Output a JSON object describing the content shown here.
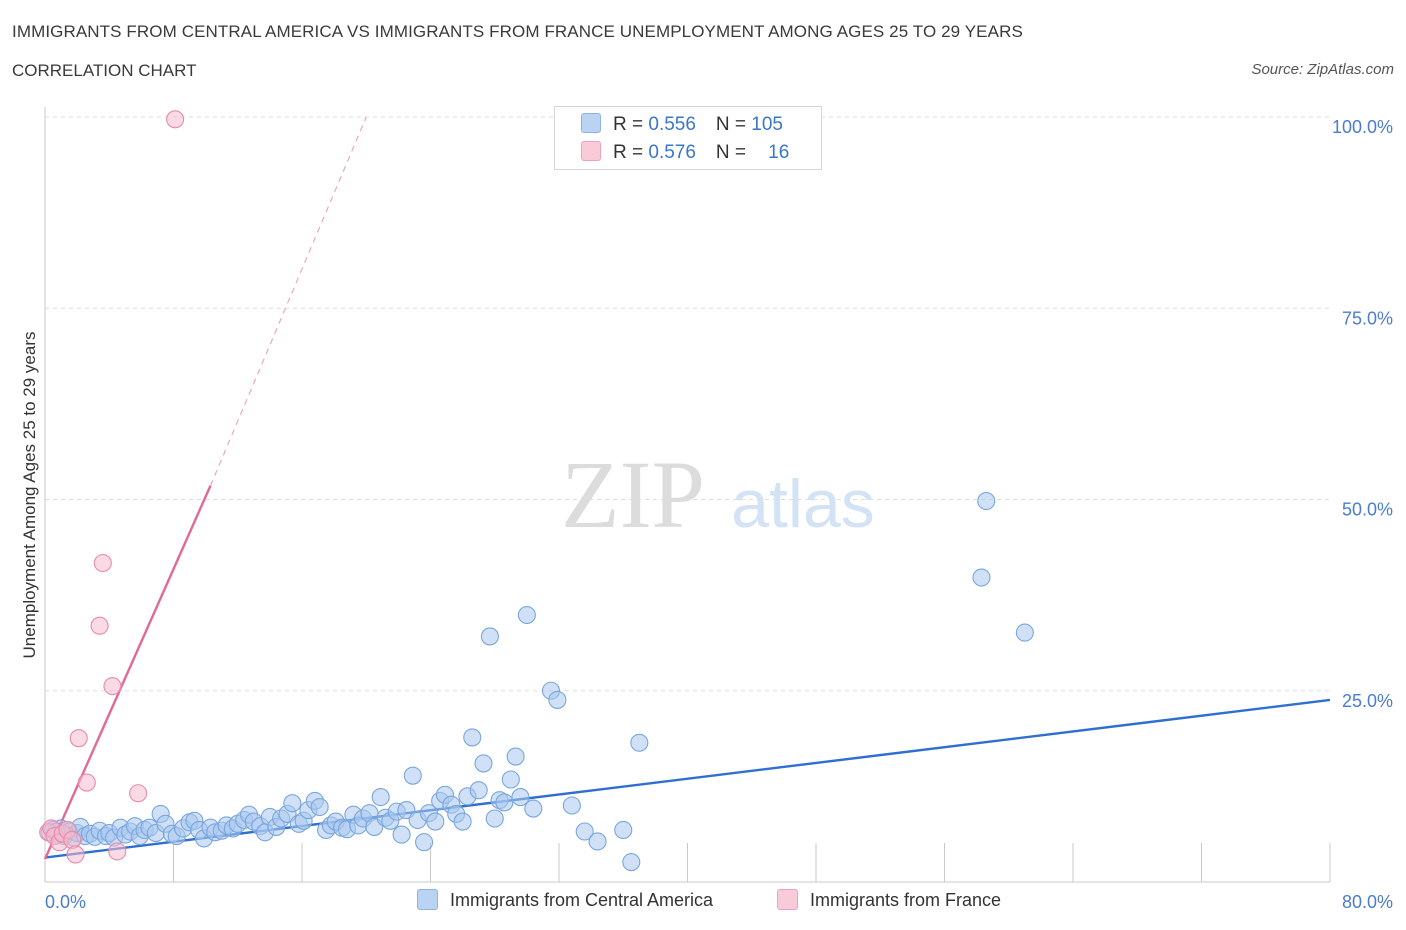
{
  "header": {
    "title": "IMMIGRANTS FROM CENTRAL AMERICA VS IMMIGRANTS FROM FRANCE UNEMPLOYMENT AMONG AGES 25 TO 29 YEARS",
    "subtitle": "CORRELATION CHART",
    "source": "Source: ZipAtlas.com"
  },
  "watermark": {
    "zip": "ZIP",
    "atlas": "atlas"
  },
  "legend": {
    "rows": [
      {
        "r_label": "R = ",
        "r_value": "0.556",
        "n_label": "N = ",
        "n_value": "105",
        "color": "#aac8f0"
      },
      {
        "r_label": "R = ",
        "r_value": "0.576",
        "n_label": "N = ",
        "n_value": "16",
        "color": "#f6bccd"
      }
    ]
  },
  "bottom_legend": [
    {
      "label": "Immigrants from Central America",
      "color": "#aac8f0"
    },
    {
      "label": "Immigrants from France",
      "color": "#f6bccd"
    }
  ],
  "chart_data": {
    "type": "scatter",
    "xlabel": "",
    "ylabel": "Unemployment Among Ages 25 to 29 years",
    "xlim": [
      0,
      80
    ],
    "ylim": [
      0,
      100
    ],
    "x_tick_labels": [
      {
        "value": 0,
        "label": "0.0%"
      },
      {
        "value": 80,
        "label": "80.0%"
      }
    ],
    "y_tick_labels": [
      {
        "value": 25,
        "label": "25.0%"
      },
      {
        "value": 50,
        "label": "50.0%"
      },
      {
        "value": 75,
        "label": "75.0%"
      },
      {
        "value": 100,
        "label": "100.0%"
      }
    ],
    "grid": true,
    "series": [
      {
        "name": "Immigrants from Central America",
        "color": "#aac8f0",
        "edge": "#7aa6dd",
        "line_color": "#2f6fd0",
        "trend": {
          "x": [
            0,
            80
          ],
          "y": [
            3.2,
            23.8
          ]
        },
        "points": [
          [
            0.3,
            6.5
          ],
          [
            0.5,
            6.8
          ],
          [
            0.8,
            6.2
          ],
          [
            1.0,
            7.0
          ],
          [
            1.2,
            6.0
          ],
          [
            1.5,
            6.6
          ],
          [
            1.8,
            5.8
          ],
          [
            2.0,
            6.4
          ],
          [
            2.2,
            7.2
          ],
          [
            2.5,
            6.0
          ],
          [
            2.8,
            6.3
          ],
          [
            3.1,
            5.9
          ],
          [
            3.4,
            6.7
          ],
          [
            3.8,
            6.0
          ],
          [
            4.0,
            6.4
          ],
          [
            4.3,
            5.8
          ],
          [
            4.7,
            7.1
          ],
          [
            5.0,
            6.2
          ],
          [
            5.3,
            6.6
          ],
          [
            5.6,
            7.3
          ],
          [
            5.9,
            6.0
          ],
          [
            6.2,
            6.8
          ],
          [
            6.5,
            7.1
          ],
          [
            6.9,
            6.4
          ],
          [
            7.2,
            8.9
          ],
          [
            7.5,
            7.6
          ],
          [
            7.9,
            6.3
          ],
          [
            8.2,
            6.0
          ],
          [
            8.6,
            7.0
          ],
          [
            9.0,
            7.8
          ],
          [
            9.3,
            8.0
          ],
          [
            9.6,
            6.8
          ],
          [
            9.9,
            5.7
          ],
          [
            10.3,
            7.1
          ],
          [
            10.6,
            6.5
          ],
          [
            11.0,
            6.7
          ],
          [
            11.3,
            7.4
          ],
          [
            11.7,
            7.0
          ],
          [
            12.0,
            7.6
          ],
          [
            12.4,
            8.1
          ],
          [
            12.7,
            8.8
          ],
          [
            13.0,
            7.9
          ],
          [
            13.4,
            7.3
          ],
          [
            13.7,
            6.5
          ],
          [
            14.0,
            8.5
          ],
          [
            14.4,
            7.2
          ],
          [
            14.7,
            8.3
          ],
          [
            15.1,
            8.9
          ],
          [
            15.4,
            10.3
          ],
          [
            15.8,
            7.6
          ],
          [
            16.1,
            8.0
          ],
          [
            16.4,
            9.4
          ],
          [
            16.8,
            10.6
          ],
          [
            17.1,
            9.8
          ],
          [
            17.5,
            6.8
          ],
          [
            17.8,
            7.4
          ],
          [
            18.1,
            7.9
          ],
          [
            18.5,
            7.1
          ],
          [
            18.8,
            6.9
          ],
          [
            19.2,
            8.8
          ],
          [
            19.5,
            7.4
          ],
          [
            19.8,
            8.3
          ],
          [
            20.2,
            9.0
          ],
          [
            20.5,
            7.2
          ],
          [
            20.9,
            11.1
          ],
          [
            21.2,
            8.4
          ],
          [
            21.5,
            8.0
          ],
          [
            21.9,
            9.2
          ],
          [
            22.2,
            6.2
          ],
          [
            22.5,
            9.4
          ],
          [
            22.9,
            13.9
          ],
          [
            23.2,
            8.1
          ],
          [
            23.6,
            5.2
          ],
          [
            23.9,
            9.0
          ],
          [
            24.3,
            7.9
          ],
          [
            24.6,
            10.6
          ],
          [
            24.9,
            11.4
          ],
          [
            25.3,
            10.1
          ],
          [
            25.6,
            8.9
          ],
          [
            26.0,
            7.9
          ],
          [
            26.3,
            11.2
          ],
          [
            26.6,
            18.9
          ],
          [
            27.0,
            12.0
          ],
          [
            27.3,
            15.5
          ],
          [
            27.7,
            32.1
          ],
          [
            28.0,
            8.3
          ],
          [
            28.3,
            10.7
          ],
          [
            28.6,
            10.4
          ],
          [
            29.0,
            13.4
          ],
          [
            29.3,
            16.4
          ],
          [
            29.6,
            11.1
          ],
          [
            30.0,
            34.9
          ],
          [
            30.4,
            9.6
          ],
          [
            31.5,
            25.0
          ],
          [
            31.9,
            23.8
          ],
          [
            32.8,
            10.0
          ],
          [
            33.6,
            6.6
          ],
          [
            34.4,
            5.3
          ],
          [
            36.0,
            6.8
          ],
          [
            36.5,
            2.6
          ],
          [
            37.0,
            18.2
          ],
          [
            58.3,
            39.8
          ],
          [
            58.6,
            49.8
          ],
          [
            61.0,
            32.6
          ],
          [
            0.7,
            6.6
          ]
        ]
      },
      {
        "name": "Immigrants from France",
        "color": "#f6bccd",
        "edge": "#e88aa8",
        "line_color": "#e06a95",
        "trend": {
          "x": [
            0,
            10.3
          ],
          "y": [
            3.0,
            51.8
          ]
        },
        "trend_ext": {
          "x": [
            10.3,
            20.0
          ],
          "y": [
            51.8,
            100
          ]
        },
        "points": [
          [
            0.2,
            6.5
          ],
          [
            0.4,
            7.0
          ],
          [
            0.6,
            6.0
          ],
          [
            0.9,
            5.2
          ],
          [
            1.1,
            6.3
          ],
          [
            1.4,
            6.8
          ],
          [
            1.7,
            5.5
          ],
          [
            1.9,
            3.6
          ],
          [
            2.1,
            18.8
          ],
          [
            2.6,
            13.0
          ],
          [
            3.4,
            33.5
          ],
          [
            3.6,
            41.7
          ],
          [
            4.2,
            25.6
          ],
          [
            4.5,
            4.0
          ],
          [
            5.8,
            11.6
          ],
          [
            8.1,
            99.7
          ]
        ]
      }
    ]
  }
}
